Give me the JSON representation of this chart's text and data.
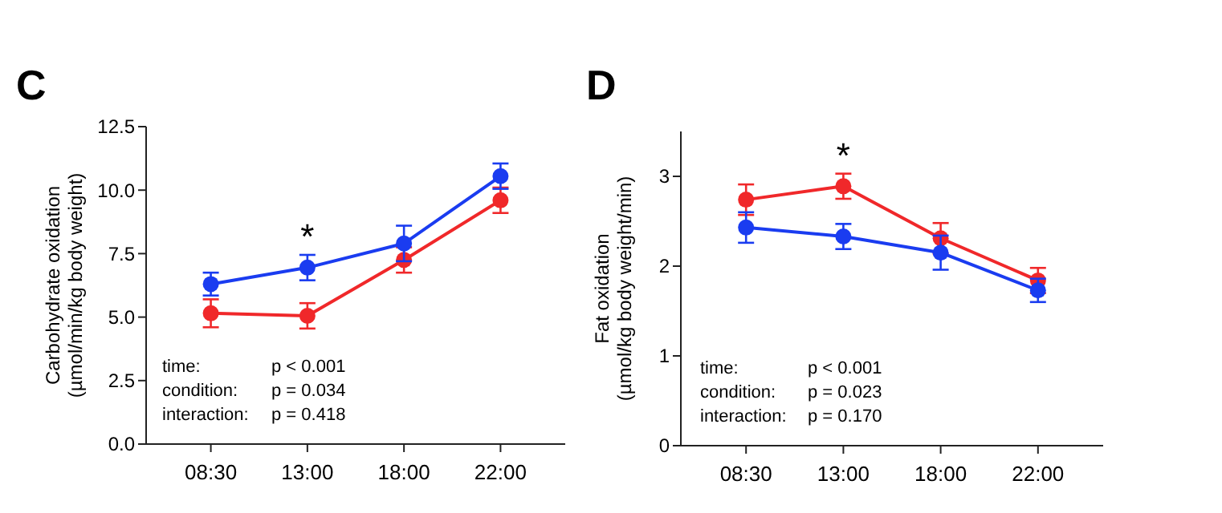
{
  "chart_data": [
    {
      "type": "line",
      "title": "C",
      "ylabel": "Carbohydrate oxidation\n(µmol/min/kg body weight)",
      "categories": [
        "08:30",
        "13:00",
        "18:00",
        "22:00"
      ],
      "ylim": [
        0,
        12.5
      ],
      "yticks": [
        {
          "value": 0,
          "label": "0.0"
        },
        {
          "value": 2.5,
          "label": "2.5"
        },
        {
          "value": 5,
          "label": "5.0"
        },
        {
          "value": 7.5,
          "label": "7.5"
        },
        {
          "value": 10,
          "label": "10.0"
        },
        {
          "value": 12.5,
          "label": "12.5"
        }
      ],
      "marker": "circle",
      "grid": false,
      "series": [
        {
          "color": "#f0282a",
          "values": [
            5.15,
            5.05,
            7.25,
            9.6
          ],
          "errors": [
            0.55,
            0.5,
            0.5,
            0.5
          ]
        },
        {
          "color": "#1a3cf0",
          "values": [
            6.3,
            6.95,
            7.9,
            10.55
          ],
          "errors": [
            0.45,
            0.5,
            0.7,
            0.5
          ]
        }
      ],
      "annotations": [
        "*",
        "time:",
        "p < 0.001",
        "condition:",
        "p = 0.034",
        "interaction:",
        "p = 0.418"
      ]
    },
    {
      "type": "line",
      "title": "D",
      "ylabel": "Fat oxidation\n(µmol/kg body weight/min)",
      "categories": [
        "08:30",
        "13:00",
        "18:00",
        "22:00"
      ],
      "ylim": [
        0,
        3.5
      ],
      "yticks": [
        0,
        1,
        2,
        3
      ],
      "marker": "circle",
      "grid": false,
      "series": [
        {
          "color": "#f0282a",
          "values": [
            2.74,
            2.89,
            2.31,
            1.84
          ],
          "errors": [
            0.17,
            0.14,
            0.17,
            0.14
          ]
        },
        {
          "color": "#1a3cf0",
          "values": [
            2.43,
            2.33,
            2.15,
            1.73
          ],
          "errors": [
            0.17,
            0.14,
            0.19,
            0.13
          ]
        }
      ],
      "annotations": [
        "*",
        "time:",
        "p < 0.001",
        "condition:",
        "p = 0.023",
        "interaction:",
        "p = 0.170"
      ]
    }
  ]
}
